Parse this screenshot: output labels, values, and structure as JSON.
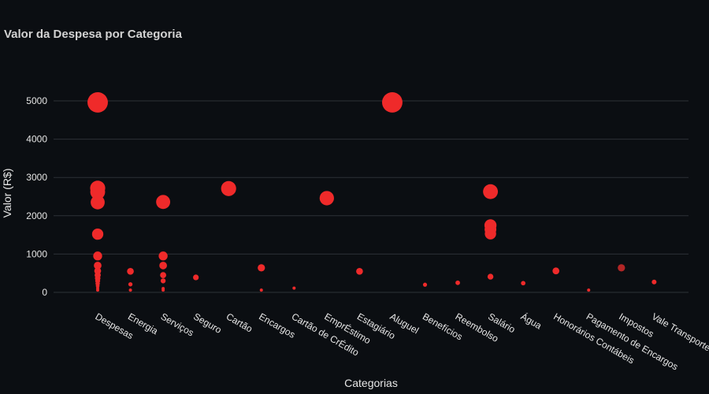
{
  "chart_data": {
    "type": "scatter",
    "title": "Valor da Despesa por Categoria",
    "xlabel": "Categorias",
    "ylabel": "Valor (R$)",
    "ylim": [
      -200,
      5900
    ],
    "yticks": [
      0,
      1000,
      2000,
      3000,
      4000,
      5000
    ],
    "grid": true,
    "marker_color": "#ef2a2a",
    "categories": [
      "Despesas",
      "Energia",
      "Serviços",
      "Seguro",
      "Cartão",
      "Encargos",
      "Cartão de CrÉdito",
      "EmprÉstimo",
      "Estagiário",
      "Aluguel",
      "Benefícios",
      "Reembolso",
      "Salário",
      "Água",
      "Honorários Contábeis",
      "Pagamento de Encargos",
      "Impostos",
      "Vale Transporte"
    ],
    "points": [
      {
        "category": "Despesas",
        "value": 4960
      },
      {
        "category": "Despesas",
        "value": 2720
      },
      {
        "category": "Despesas",
        "value": 2620
      },
      {
        "category": "Despesas",
        "value": 2350
      },
      {
        "category": "Despesas",
        "value": 1520
      },
      {
        "category": "Despesas",
        "value": 950
      },
      {
        "category": "Despesas",
        "value": 700
      },
      {
        "category": "Despesas",
        "value": 560
      },
      {
        "category": "Despesas",
        "value": 450
      },
      {
        "category": "Despesas",
        "value": 370
      },
      {
        "category": "Despesas",
        "value": 300
      },
      {
        "category": "Despesas",
        "value": 230
      },
      {
        "category": "Despesas",
        "value": 170
      },
      {
        "category": "Despesas",
        "value": 110
      },
      {
        "category": "Despesas",
        "value": 60
      },
      {
        "category": "Energia",
        "value": 550
      },
      {
        "category": "Energia",
        "value": 210
      },
      {
        "category": "Energia",
        "value": 60
      },
      {
        "category": "Serviços",
        "value": 2360
      },
      {
        "category": "Serviços",
        "value": 950
      },
      {
        "category": "Serviços",
        "value": 700
      },
      {
        "category": "Serviços",
        "value": 450
      },
      {
        "category": "Serviços",
        "value": 300
      },
      {
        "category": "Serviços",
        "value": 100
      },
      {
        "category": "Serviços",
        "value": 60
      },
      {
        "category": "Seguro",
        "value": 390
      },
      {
        "category": "Cartão",
        "value": 2710
      },
      {
        "category": "Encargos",
        "value": 640
      },
      {
        "category": "Encargos",
        "value": 60
      },
      {
        "category": "Cartão de CrÉdito",
        "value": 110
      },
      {
        "category": "EmprÉstimo",
        "value": 2460
      },
      {
        "category": "Estagiário",
        "value": 550
      },
      {
        "category": "Aluguel",
        "value": 4960
      },
      {
        "category": "Benefícios",
        "value": 200
      },
      {
        "category": "Reembolso",
        "value": 250
      },
      {
        "category": "Salário",
        "value": 2630
      },
      {
        "category": "Salário",
        "value": 1750
      },
      {
        "category": "Salário",
        "value": 1640
      },
      {
        "category": "Salário",
        "value": 1530
      },
      {
        "category": "Salário",
        "value": 410
      },
      {
        "category": "Água",
        "value": 240
      },
      {
        "category": "Honorários Contábeis",
        "value": 560
      },
      {
        "category": "Pagamento de Encargos",
        "value": 60
      },
      {
        "category": "Impostos",
        "value": 640
      },
      {
        "category": "Vale Transporte",
        "value": 270
      }
    ]
  }
}
